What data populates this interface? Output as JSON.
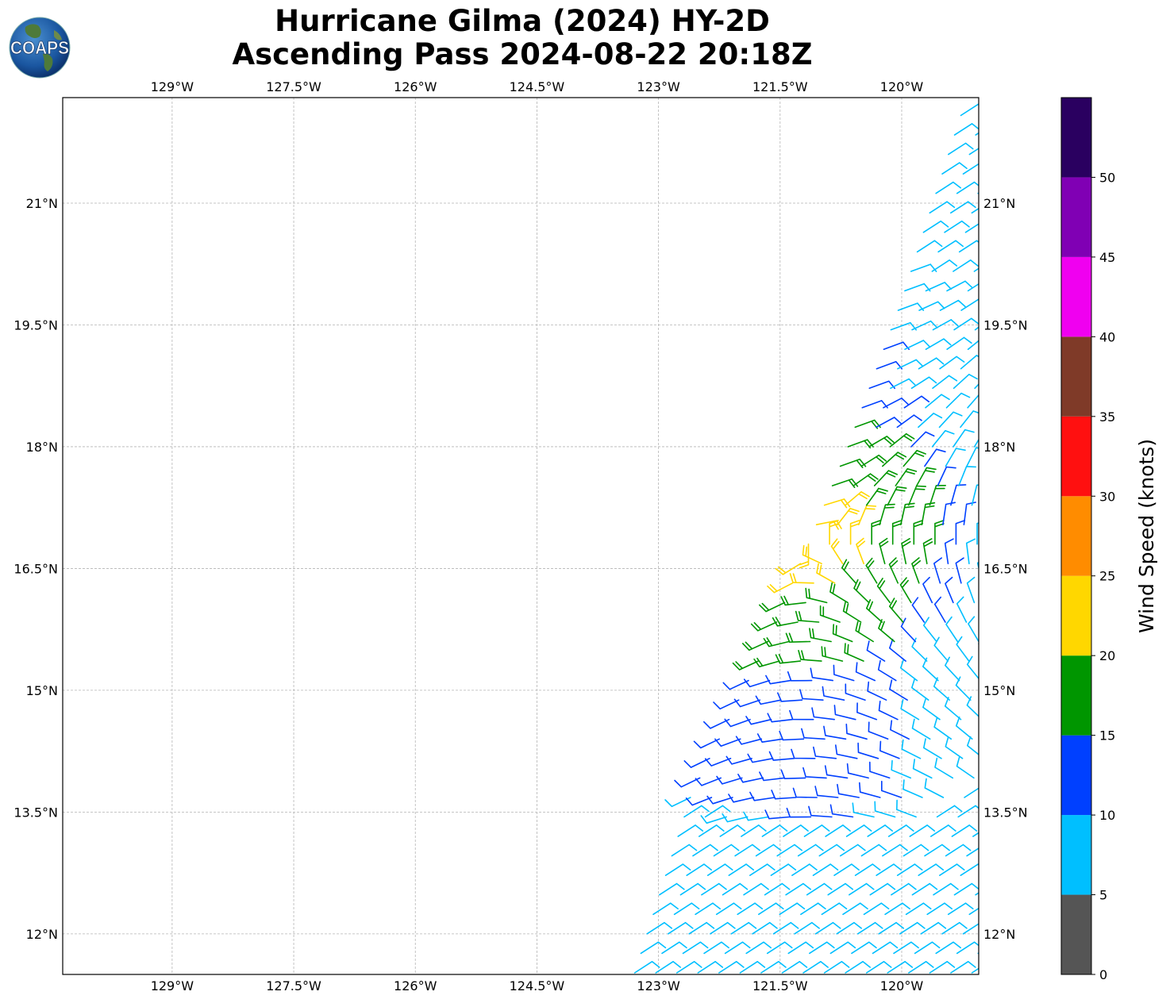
{
  "title": {
    "line1": "Hurricane Gilma (2024) HY-2D",
    "line2": "Ascending Pass 2024-08-22 20:18Z"
  },
  "logo": {
    "text": "COAPS",
    "icon": "globe-logo-icon"
  },
  "chart_data": {
    "type": "wind-barb-map",
    "lon_range": [
      -130.35,
      -119.05
    ],
    "lat_range": [
      11.5,
      22.3
    ],
    "x_ticks": [
      {
        "value": -129,
        "label": "129°W"
      },
      {
        "value": -127.5,
        "label": "127.5°W"
      },
      {
        "value": -126,
        "label": "126°W"
      },
      {
        "value": -124.5,
        "label": "124.5°W"
      },
      {
        "value": -123,
        "label": "123°W"
      },
      {
        "value": -121.5,
        "label": "121.5°W"
      },
      {
        "value": -120,
        "label": "120°W"
      }
    ],
    "y_ticks": [
      {
        "value": 12,
        "label": "12°N"
      },
      {
        "value": 13.5,
        "label": "13.5°N"
      },
      {
        "value": 15,
        "label": "15°N"
      },
      {
        "value": 16.5,
        "label": "16.5°N"
      },
      {
        "value": 18,
        "label": "18°N"
      },
      {
        "value": 19.5,
        "label": "19.5°N"
      },
      {
        "value": 21,
        "label": "21°N"
      }
    ],
    "grid": true,
    "swath": {
      "west_edge": [
        [
          -123.3,
          11.5
        ],
        [
          -122.6,
          13.7
        ],
        [
          -121.6,
          15.7
        ],
        [
          -120.7,
          17.9
        ],
        [
          -120.0,
          19.8
        ],
        [
          -119.2,
          22.3
        ]
      ]
    },
    "wind_field": {
      "center": {
        "lon": -121.1,
        "lat": 16.8
      },
      "core_speed_kt": 22,
      "speed_zones": [
        {
          "name": "yellow core",
          "speed_kt": 22
        },
        {
          "name": "green ring",
          "speed_kt": 17
        },
        {
          "name": "blue outer",
          "speed_kt": 12
        },
        {
          "name": "cyan edge",
          "speed_kt": 8
        }
      ]
    },
    "colorbar": {
      "label": "Wind Speed (knots)",
      "bounds": [
        0,
        5,
        10,
        15,
        20,
        25,
        30,
        35,
        40,
        45,
        50,
        55
      ],
      "colors": [
        "#555555",
        "#00bfff",
        "#0040ff",
        "#009600",
        "#ffd700",
        "#ff8c00",
        "#ff1010",
        "#7f3a28",
        "#f000f0",
        "#8000b4",
        "#2a0060"
      ],
      "ticks": [
        {
          "value": 0,
          "label": "0"
        },
        {
          "value": 5,
          "label": "5"
        },
        {
          "value": 10,
          "label": "10"
        },
        {
          "value": 15,
          "label": "15"
        },
        {
          "value": 20,
          "label": "20"
        },
        {
          "value": 25,
          "label": "25"
        },
        {
          "value": 30,
          "label": "30"
        },
        {
          "value": 35,
          "label": "35"
        },
        {
          "value": 40,
          "label": "40"
        },
        {
          "value": 45,
          "label": "45"
        },
        {
          "value": 50,
          "label": "50"
        }
      ]
    }
  }
}
